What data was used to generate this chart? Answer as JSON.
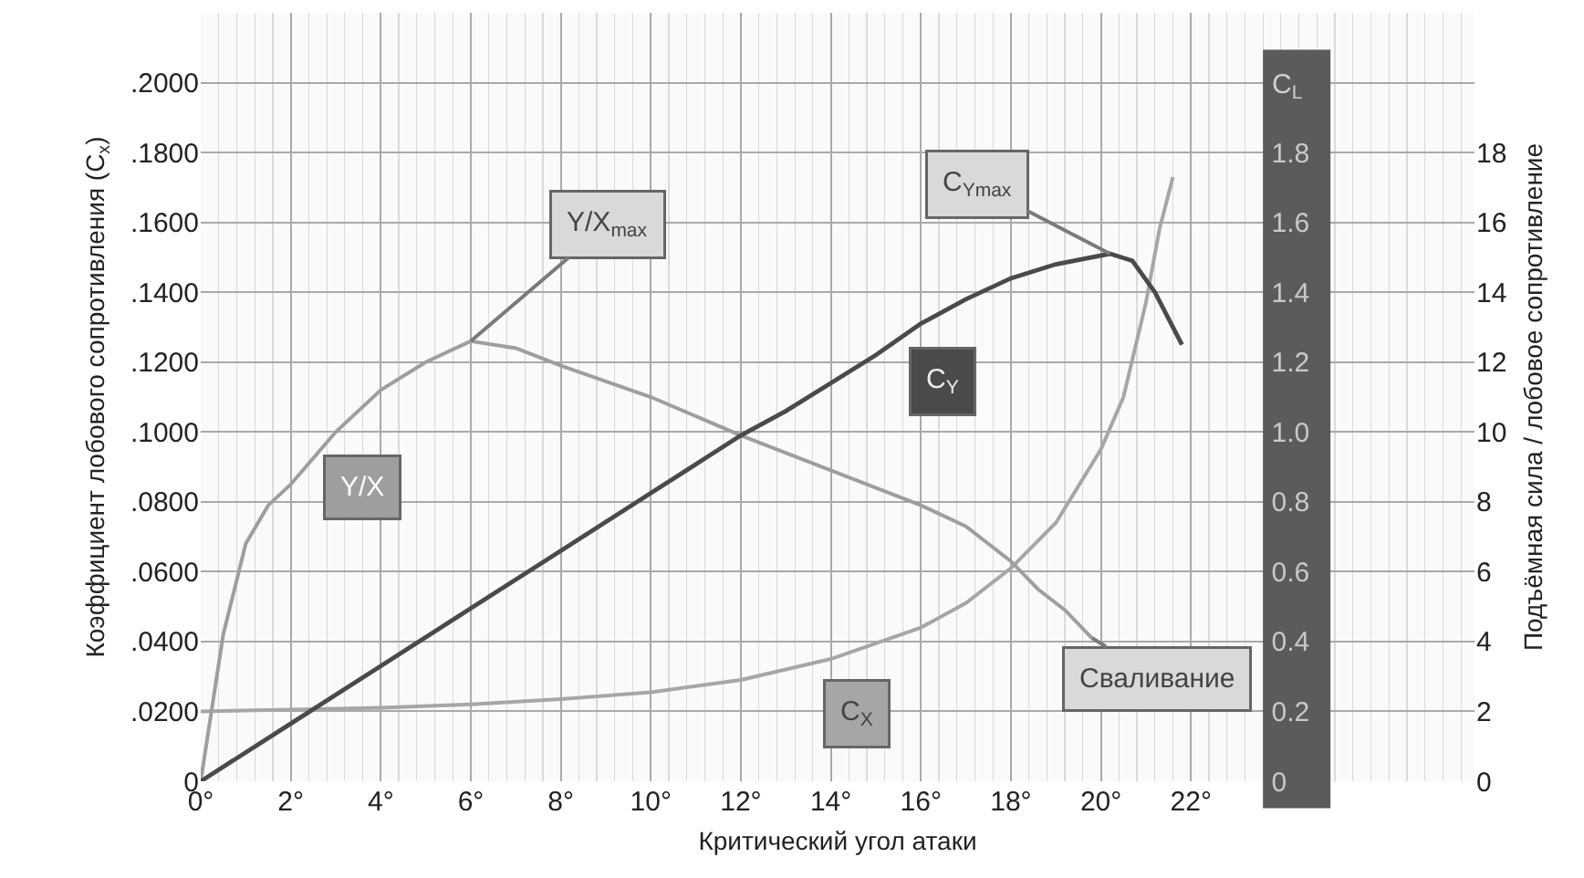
{
  "chart_data": {
    "type": "line",
    "xlabel": "Критический угол атаки",
    "ylabel": "Коэффициент лобового сопротивления (C$_{x}$)",
    "y2label": "Подъёмная сила / лобовое сопротивление",
    "y3label": "C$_{L}$",
    "xlim": [
      0,
      28.3
    ],
    "xticks": [
      {
        "value": 0,
        "label": "0°"
      },
      {
        "value": 2,
        "label": "2°"
      },
      {
        "value": 4,
        "label": "4°"
      },
      {
        "value": 6,
        "label": "6°"
      },
      {
        "value": 8,
        "label": "8°"
      },
      {
        "value": 10,
        "label": "10°"
      },
      {
        "value": 12,
        "label": "12°"
      },
      {
        "value": 14,
        "label": "14°"
      },
      {
        "value": 16,
        "label": "16°"
      },
      {
        "value": 18,
        "label": "18°"
      },
      {
        "value": 20,
        "label": "20°"
      },
      {
        "value": 22,
        "label": "22°"
      }
    ],
    "ylim": [
      0,
      0.22
    ],
    "yticks": [
      0,
      {
        "value": 0.02,
        "label": ".0200"
      },
      {
        "value": 0.04,
        "label": ".0400"
      },
      {
        "value": 0.06,
        "label": ".0600"
      },
      {
        "value": 0.08,
        "label": ".0800"
      },
      {
        "value": 0.1,
        "label": ".1000"
      },
      {
        "value": 0.12,
        "label": ".1200"
      },
      {
        "value": 0.14,
        "label": ".1400"
      },
      {
        "value": 0.16,
        "label": ".1600"
      },
      {
        "value": 0.18,
        "label": ".1800"
      },
      {
        "value": 0.2,
        "label": ".2000"
      }
    ],
    "y2lim": [
      0,
      22
    ],
    "y2ticks": [
      0,
      2,
      4,
      6,
      8,
      10,
      12,
      14,
      16,
      18
    ],
    "y3lim": [
      0,
      2.2
    ],
    "y3ticks": [
      0,
      0.2,
      0.4,
      0.6,
      0.8,
      {
        "value": 1,
        "label": "1.0"
      },
      1.2,
      1.4,
      1.6,
      1.8
    ],
    "grid": true,
    "legend": false,
    "marker": "none",
    "series": [
      {
        "name": "C$_{X}$",
        "color": "#a6a6a6",
        "x": [
          0,
          2,
          4,
          6,
          8,
          10,
          12,
          14,
          16,
          17,
          18,
          19,
          20,
          20.5,
          21,
          21.3,
          21.6
        ],
        "values": [
          0.02,
          0.0205,
          0.021,
          0.022,
          0.0235,
          0.0255,
          0.029,
          0.035,
          0.044,
          0.051,
          0.061,
          0.074,
          0.095,
          0.11,
          0.137,
          0.158,
          0.173
        ]
      },
      {
        "name": "Y/X",
        "color": "#9e9e9e",
        "axis": "y2",
        "x": [
          0,
          0.5,
          1,
          1.5,
          2,
          3,
          4,
          5,
          6,
          7,
          8,
          10,
          12,
          14,
          16,
          17,
          18,
          18.6,
          19.2,
          19.8
        ],
        "values": [
          0,
          4.2,
          6.8,
          7.9,
          8.5,
          10,
          11.2,
          12,
          12.6,
          12.4,
          11.9,
          11,
          9.9,
          8.9,
          7.9,
          7.3,
          6.3,
          5.5,
          4.9,
          4.1
        ]
      },
      {
        "name": "C$_{Y}$",
        "color": "#4a4a4a",
        "axis": "y3",
        "x": [
          0,
          2,
          4,
          6,
          8,
          10,
          12,
          13,
          14,
          15,
          16,
          17,
          18,
          19,
          20.2,
          20.7,
          21.2,
          21.8
        ],
        "values": [
          0,
          0.165,
          0.33,
          0.495,
          0.66,
          0.825,
          0.99,
          1.06,
          1.14,
          1.22,
          1.31,
          1.38,
          1.44,
          1.48,
          1.51,
          1.49,
          1.4,
          1.25
        ]
      }
    ],
    "annotations": [
      {
        "text": "Y/X$_{max}$",
        "x": 6,
        "y": 0.126
      },
      {
        "text": "C$_{Ymax}$",
        "x": 20.2,
        "y": 0.151
      },
      {
        "text": "Сваливание",
        "x": 19.8,
        "y": 0.041
      }
    ]
  }
}
